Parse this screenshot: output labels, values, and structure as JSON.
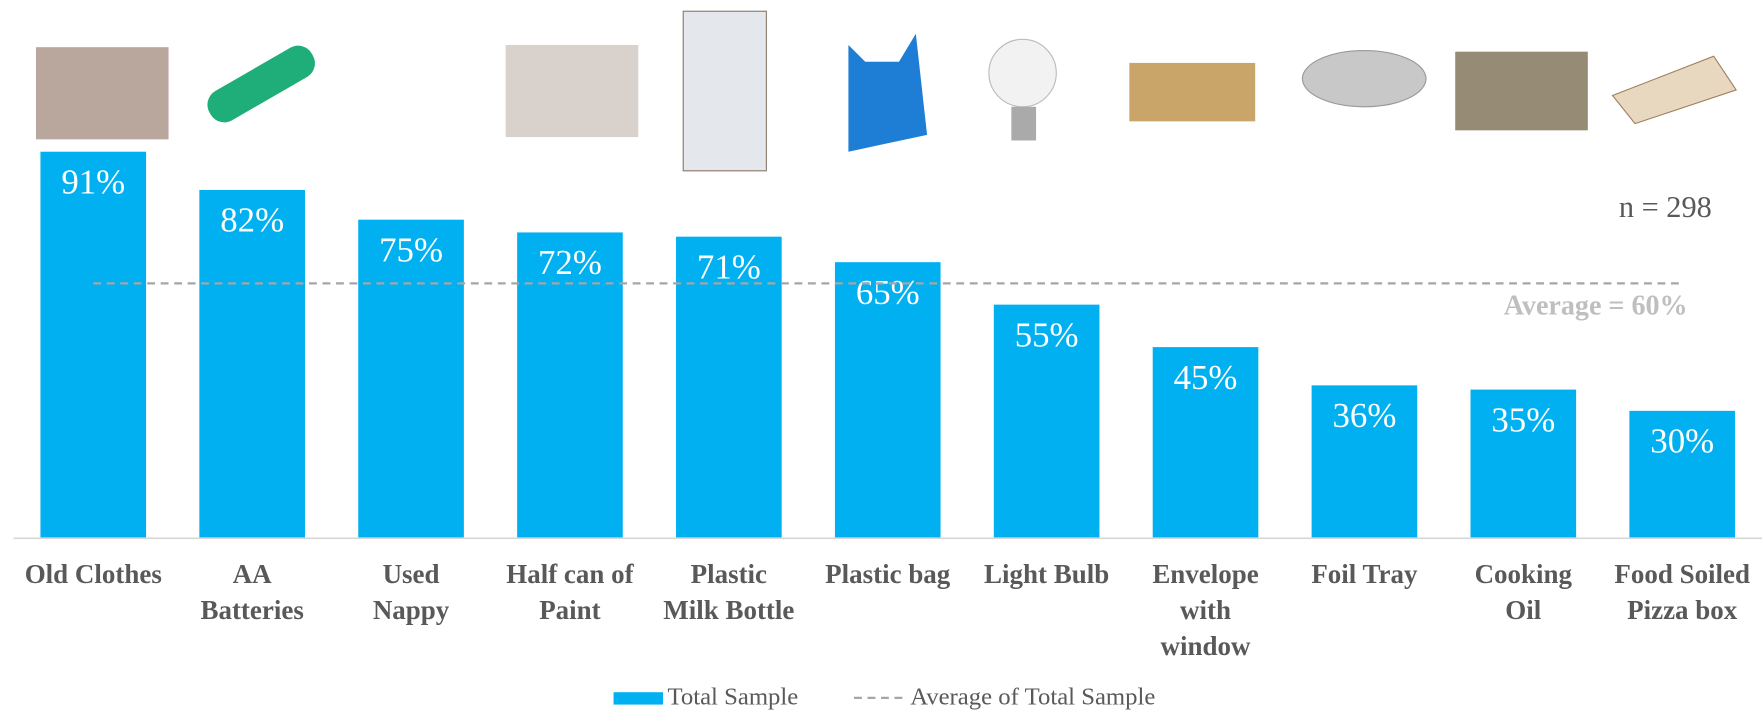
{
  "chart_data": {
    "type": "bar",
    "categories": [
      "Old Clothes",
      "AA\nBatteries",
      "Used\nNappy",
      "Half can of\nPaint",
      "Plastic\nMilk Bottle",
      "Plastic bag",
      "Light Bulb",
      "Envelope\nwith\nwindow",
      "Foil Tray",
      "Cooking\nOil",
      "Food Soiled\nPizza box"
    ],
    "series": [
      {
        "name": "Total Sample",
        "color": "#00b0f0",
        "values": [
          91,
          82,
          75,
          72,
          71,
          65,
          55,
          45,
          36,
          35,
          30
        ],
        "value_labels": [
          "91%",
          "82%",
          "75%",
          "72%",
          "71%",
          "65%",
          "55%",
          "45%",
          "36%",
          "35%",
          "30%"
        ]
      }
    ],
    "average": {
      "name": "Average of Total Sample",
      "value": 60,
      "label": "Average = 60%",
      "color": "#a6a6a6"
    },
    "annotation": "n = 298",
    "legend": "bottom"
  }
}
